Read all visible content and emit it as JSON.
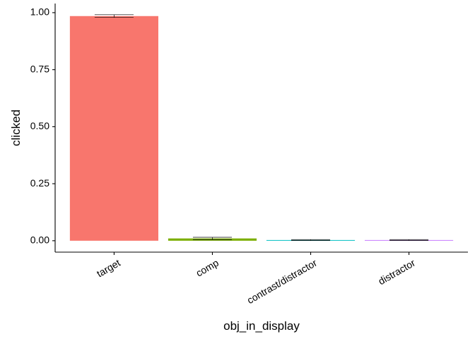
{
  "chart_data": {
    "type": "bar",
    "categories": [
      "target",
      "comp",
      "contrast/distractor",
      "distractor"
    ],
    "values": [
      0.985,
      0.01,
      0.003,
      0.003
    ],
    "errors_low": [
      0.979,
      0.005,
      0.001,
      0.001
    ],
    "errors_high": [
      0.991,
      0.015,
      0.005,
      0.005
    ],
    "colors": [
      "#F8766D",
      "#7CAE00",
      "#00BFC4",
      "#C77CFF"
    ],
    "xlabel": "obj_in_display",
    "ylabel": "clicked",
    "ylim": [
      -0.05,
      1.04
    ],
    "yticks": [
      0.0,
      0.25,
      0.5,
      0.75,
      1.0
    ],
    "ytick_labels": [
      "0.00",
      "0.25",
      "0.50",
      "0.75",
      "1.00"
    ],
    "grid": false,
    "legend": "none"
  }
}
